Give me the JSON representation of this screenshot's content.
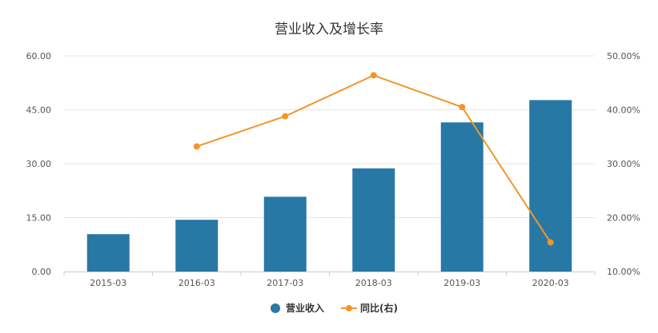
{
  "chart_data": {
    "type": "bar",
    "title": "营业收入及增长率",
    "categories": [
      "2015-03",
      "2016-03",
      "2017-03",
      "2018-03",
      "2019-03",
      "2020-03"
    ],
    "series": [
      {
        "name": "营业收入",
        "type": "bar",
        "axis": "left",
        "color": "#2878a6",
        "values": [
          10.4,
          14.4,
          20.8,
          28.7,
          41.5,
          47.7
        ]
      },
      {
        "name": "同比(右)",
        "type": "line",
        "axis": "right",
        "color": "#f0962c",
        "values": [
          null,
          33.2,
          38.8,
          46.4,
          40.5,
          15.4
        ]
      }
    ],
    "y_left": {
      "min": 0,
      "max": 60,
      "ticks": [
        "0.00",
        "15.00",
        "30.00",
        "45.00",
        "60.00"
      ]
    },
    "y_right": {
      "min": 10,
      "max": 50,
      "ticks": [
        "10.00%",
        "20.00%",
        "30.00%",
        "40.00%",
        "50.00%"
      ]
    },
    "grid": "horizontal",
    "legend_position": "bottom-center"
  }
}
